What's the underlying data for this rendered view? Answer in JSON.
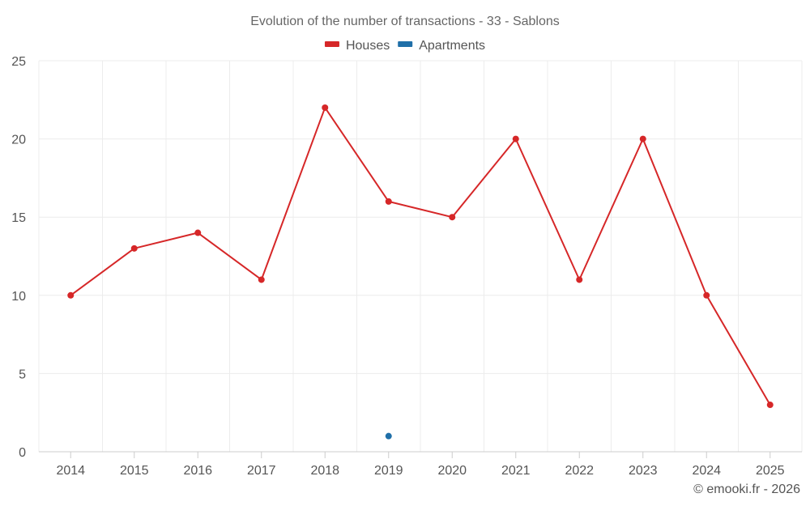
{
  "chart_data": {
    "type": "line",
    "title": "Evolution of the number of transactions - 33 - Sablons",
    "x": [
      "2014",
      "2015",
      "2016",
      "2017",
      "2018",
      "2019",
      "2020",
      "2021",
      "2022",
      "2023",
      "2024",
      "2025"
    ],
    "ylim": [
      0,
      25
    ],
    "yticks": [
      0,
      5,
      10,
      15,
      20,
      25
    ],
    "grid": true,
    "legend_position": "top-center",
    "series": [
      {
        "name": "Houses",
        "color": "#d62728",
        "values": [
          10,
          13,
          14,
          11,
          22,
          16,
          15,
          20,
          11,
          20,
          10,
          3
        ]
      },
      {
        "name": "Apartments",
        "color": "#1f6fa8",
        "values": [
          null,
          null,
          null,
          null,
          null,
          1,
          null,
          null,
          null,
          null,
          null,
          null
        ]
      }
    ]
  },
  "credit": "© emooki.fr - 2026"
}
